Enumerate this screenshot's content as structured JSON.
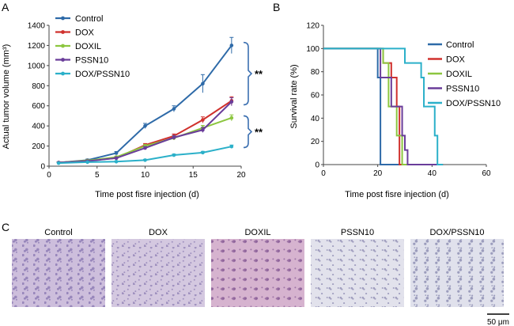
{
  "panels": {
    "a": {
      "letter": "A",
      "chart_data": {
        "type": "line",
        "title": "",
        "xlabel": "Time post fisre injection (d)",
        "ylabel": "Actual tumor volume (mm³)",
        "xlim": [
          0,
          20
        ],
        "ylim": [
          0,
          1400
        ],
        "xticks": [
          0,
          5,
          10,
          15,
          20
        ],
        "yticks": [
          0,
          200,
          400,
          600,
          800,
          1000,
          1200,
          1400
        ],
        "x": [
          1,
          4,
          7,
          10,
          13,
          16,
          19
        ],
        "legend_position": "top-left",
        "series": [
          {
            "name": "Control",
            "color": "#2e6aa8",
            "marker": "diamond",
            "values": [
              35,
              60,
              130,
              400,
              570,
              820,
              1200
            ],
            "errors": [
              8,
              10,
              15,
              25,
              30,
              90,
              80
            ]
          },
          {
            "name": "DOX",
            "color": "#d0312d",
            "marker": "square",
            "values": [
              35,
              55,
              80,
              210,
              300,
              460,
              650
            ],
            "errors": [
              6,
              8,
              10,
              15,
              20,
              30,
              40
            ]
          },
          {
            "name": "DOXIL",
            "color": "#8cc63f",
            "marker": "triangle",
            "values": [
              35,
              55,
              90,
              200,
              280,
              380,
              480
            ],
            "errors": [
              6,
              8,
              10,
              15,
              20,
              25,
              30
            ]
          },
          {
            "name": "PSSN10",
            "color": "#6a3d9a",
            "marker": "cross",
            "values": [
              35,
              50,
              80,
              180,
              285,
              360,
              640
            ],
            "errors": [
              6,
              8,
              10,
              15,
              20,
              25,
              40
            ]
          },
          {
            "name": "DOX/PSSN10",
            "color": "#2bb0c9",
            "marker": "star",
            "values": [
              30,
              40,
              45,
              60,
              110,
              135,
              195
            ],
            "errors": [
              5,
              5,
              6,
              8,
              10,
              12,
              15
            ]
          }
        ],
        "annotations": [
          {
            "text": "**",
            "bracket_y": [
              610,
              1230
            ]
          },
          {
            "text": "**",
            "bracket_y": [
              185,
              500
            ]
          }
        ]
      }
    },
    "b": {
      "letter": "B",
      "chart_data": {
        "type": "line",
        "title": "",
        "xlabel": "Time post fisre injection (d)",
        "ylabel": "Survival rate (%)",
        "xlim": [
          0,
          60
        ],
        "ylim": [
          0,
          120
        ],
        "xticks": [
          0,
          20,
          40,
          60
        ],
        "yticks": [
          0,
          20,
          40,
          60,
          80,
          100,
          120
        ],
        "legend_position": "right",
        "series": [
          {
            "name": "Control",
            "color": "#2e6aa8",
            "steps": [
              [
                0,
                100
              ],
              [
                20,
                100
              ],
              [
                20,
                75
              ],
              [
                21,
                75
              ],
              [
                21,
                0
              ],
              [
                44,
                0
              ]
            ]
          },
          {
            "name": "DOX",
            "color": "#d0312d",
            "steps": [
              [
                0,
                100
              ],
              [
                22,
                100
              ],
              [
                22,
                87.5
              ],
              [
                25,
                87.5
              ],
              [
                25,
                75
              ],
              [
                27,
                75
              ],
              [
                27,
                50
              ],
              [
                28,
                50
              ],
              [
                28,
                0
              ],
              [
                44,
                0
              ]
            ]
          },
          {
            "name": "DOXIL",
            "color": "#8cc63f",
            "steps": [
              [
                0,
                100
              ],
              [
                22,
                100
              ],
              [
                22,
                87.5
              ],
              [
                24,
                87.5
              ],
              [
                24,
                50
              ],
              [
                27,
                50
              ],
              [
                27,
                25
              ],
              [
                29,
                25
              ],
              [
                29,
                0
              ],
              [
                44,
                0
              ]
            ]
          },
          {
            "name": "PSSN10",
            "color": "#6a3d9a",
            "steps": [
              [
                0,
                100
              ],
              [
                21,
                100
              ],
              [
                21,
                75
              ],
              [
                25,
                75
              ],
              [
                25,
                50
              ],
              [
                29,
                50
              ],
              [
                29,
                25
              ],
              [
                30,
                25
              ],
              [
                30,
                12.5
              ],
              [
                31,
                12.5
              ],
              [
                31,
                0
              ],
              [
                44,
                0
              ]
            ]
          },
          {
            "name": "DOX/PSSN10",
            "color": "#2bb0c9",
            "steps": [
              [
                0,
                100
              ],
              [
                30,
                100
              ],
              [
                30,
                87.5
              ],
              [
                36,
                87.5
              ],
              [
                36,
                75
              ],
              [
                37,
                75
              ],
              [
                37,
                50
              ],
              [
                41,
                50
              ],
              [
                41,
                25
              ],
              [
                42,
                25
              ],
              [
                42,
                0
              ],
              [
                44,
                0
              ]
            ]
          }
        ]
      }
    },
    "c": {
      "letter": "C",
      "images": [
        {
          "label": "Control",
          "tone": "#cdbedc",
          "cell": "#8674b0"
        },
        {
          "label": "DOX",
          "tone": "#d4c8e0",
          "cell": "#8f80b4"
        },
        {
          "label": "DOXIL",
          "tone": "#d6b3cf",
          "cell": "#8a5e98"
        },
        {
          "label": "PSSN10",
          "tone": "#e2e2ec",
          "cell": "#8b88b0"
        },
        {
          "label": "DOX/PSSN10",
          "tone": "#e0e1ec",
          "cell": "#8586ad"
        }
      ],
      "scale_bar": "50 μm"
    }
  }
}
